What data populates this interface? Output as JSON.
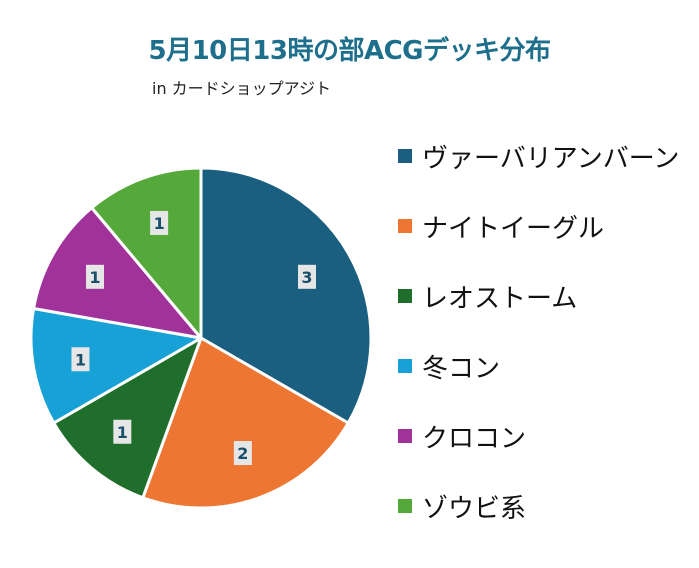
{
  "chart_data": {
    "type": "pie",
    "title": "5月10日13時の部ACGデッキ分布",
    "subtitle": "in カードショップアジト",
    "categories": [
      "ヴァーバリアンバーン",
      "ナイトイーグル",
      "レオストーム",
      "冬コン",
      "クロコン",
      "ゾウビ系"
    ],
    "values": [
      3,
      2,
      1,
      1,
      1,
      1
    ],
    "colors": [
      "#1a5f80",
      "#ed7632",
      "#1f6e2b",
      "#17a1d7",
      "#a0329a",
      "#55a93a"
    ],
    "data_labels": true,
    "legend_position": "right"
  }
}
